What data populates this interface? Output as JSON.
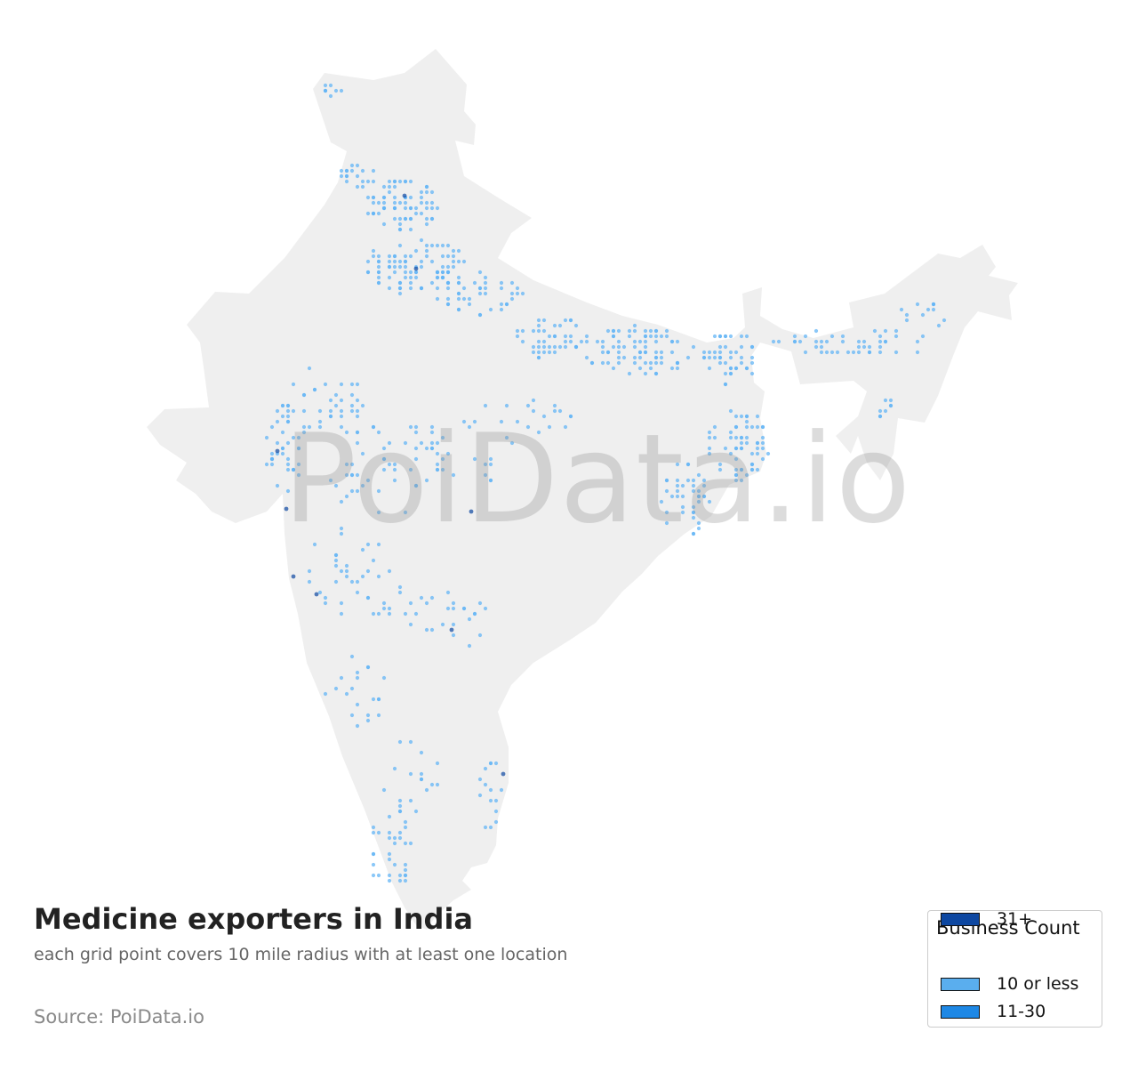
{
  "chart": {
    "title": "Medicine exporters in India",
    "subtitle": "each grid point covers 10 mile radius with at least one location",
    "source": "Source: PoiData.io",
    "watermark": "PoiData.io"
  },
  "legend": {
    "title": "Business Count",
    "items": [
      {
        "label": "10 or less",
        "color": "#5aaeee"
      },
      {
        "label": "11-30",
        "color": "#1e88e5"
      },
      {
        "label": "31+",
        "color": "#0d47a1"
      }
    ]
  },
  "colors": {
    "land": "#efefef",
    "point_low": "#64b5f6",
    "point_mid": "#1e88e5",
    "point_high": "#0d47a1"
  },
  "chart_data": {
    "type": "scatter",
    "map_region": "India",
    "title": "Medicine exporters in India",
    "categories": [
      "10 or less",
      "11-30",
      "31+"
    ],
    "grid_radius_miles": 10
  }
}
